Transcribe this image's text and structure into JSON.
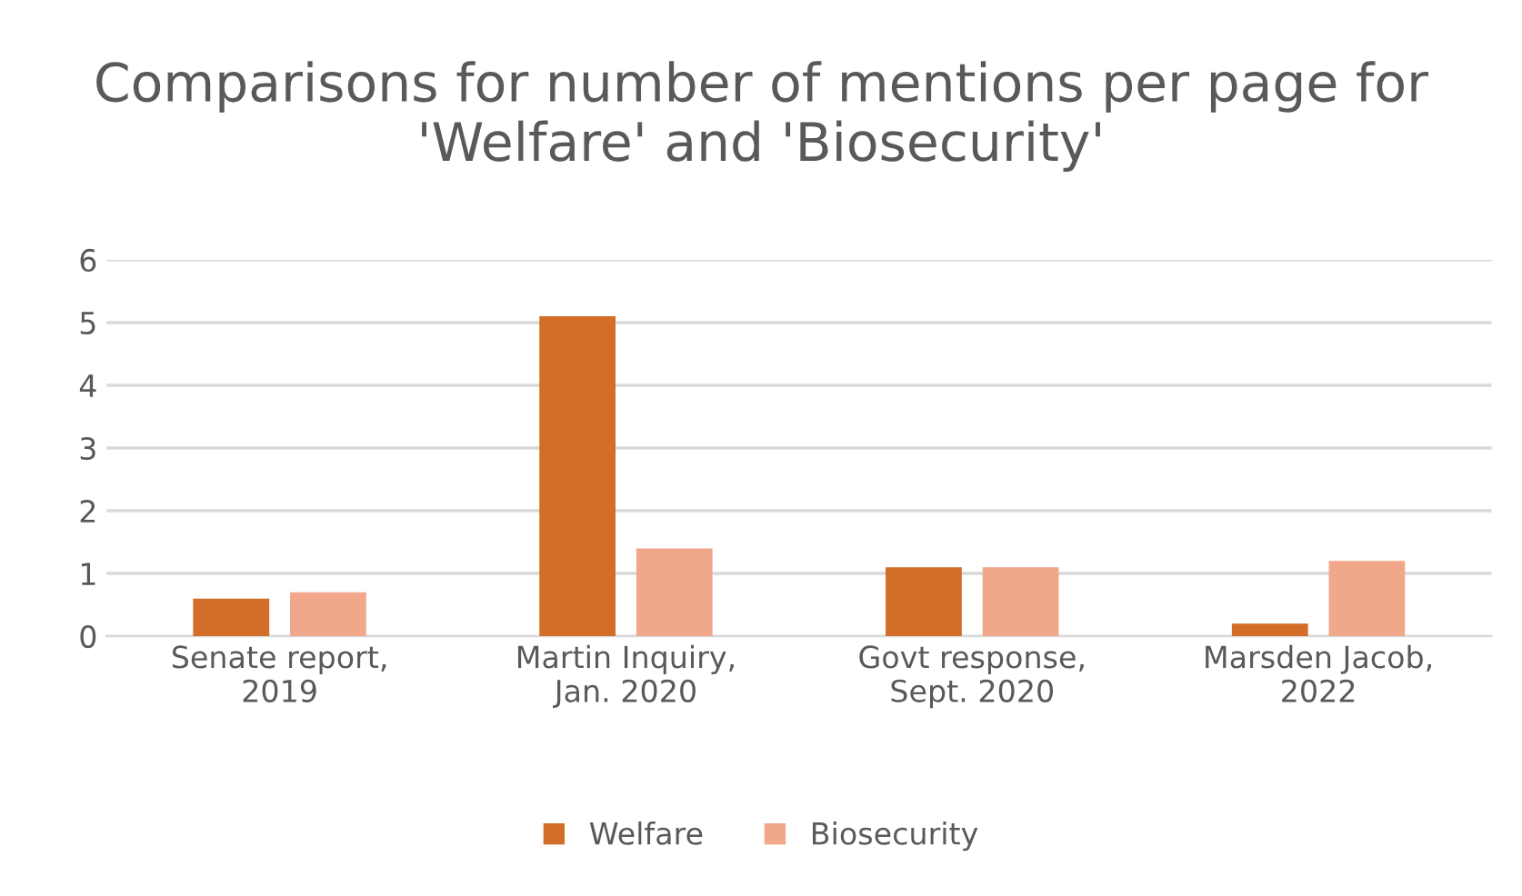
{
  "chart_data": {
    "type": "bar",
    "title": "Comparisons for number of mentions per page for 'Welfare' and 'Biosecurity'",
    "categories": [
      "Senate report,\n2019",
      "Martin Inquiry,\nJan. 2020",
      "Govt response,\nSept. 2020",
      "Marsden Jacob,\n2022"
    ],
    "series": [
      {
        "name": "Welfare",
        "color": "#d26e2a",
        "values": [
          0.6,
          5.1,
          1.1,
          0.2
        ]
      },
      {
        "name": "Biosecurity",
        "color": "#f1a78a",
        "values": [
          0.7,
          1.4,
          1.1,
          1.2
        ]
      }
    ],
    "ylim": [
      0,
      6
    ],
    "yticks": [
      0,
      1,
      2,
      3,
      4,
      5,
      6
    ],
    "grid": "y",
    "legend": "bottom"
  }
}
